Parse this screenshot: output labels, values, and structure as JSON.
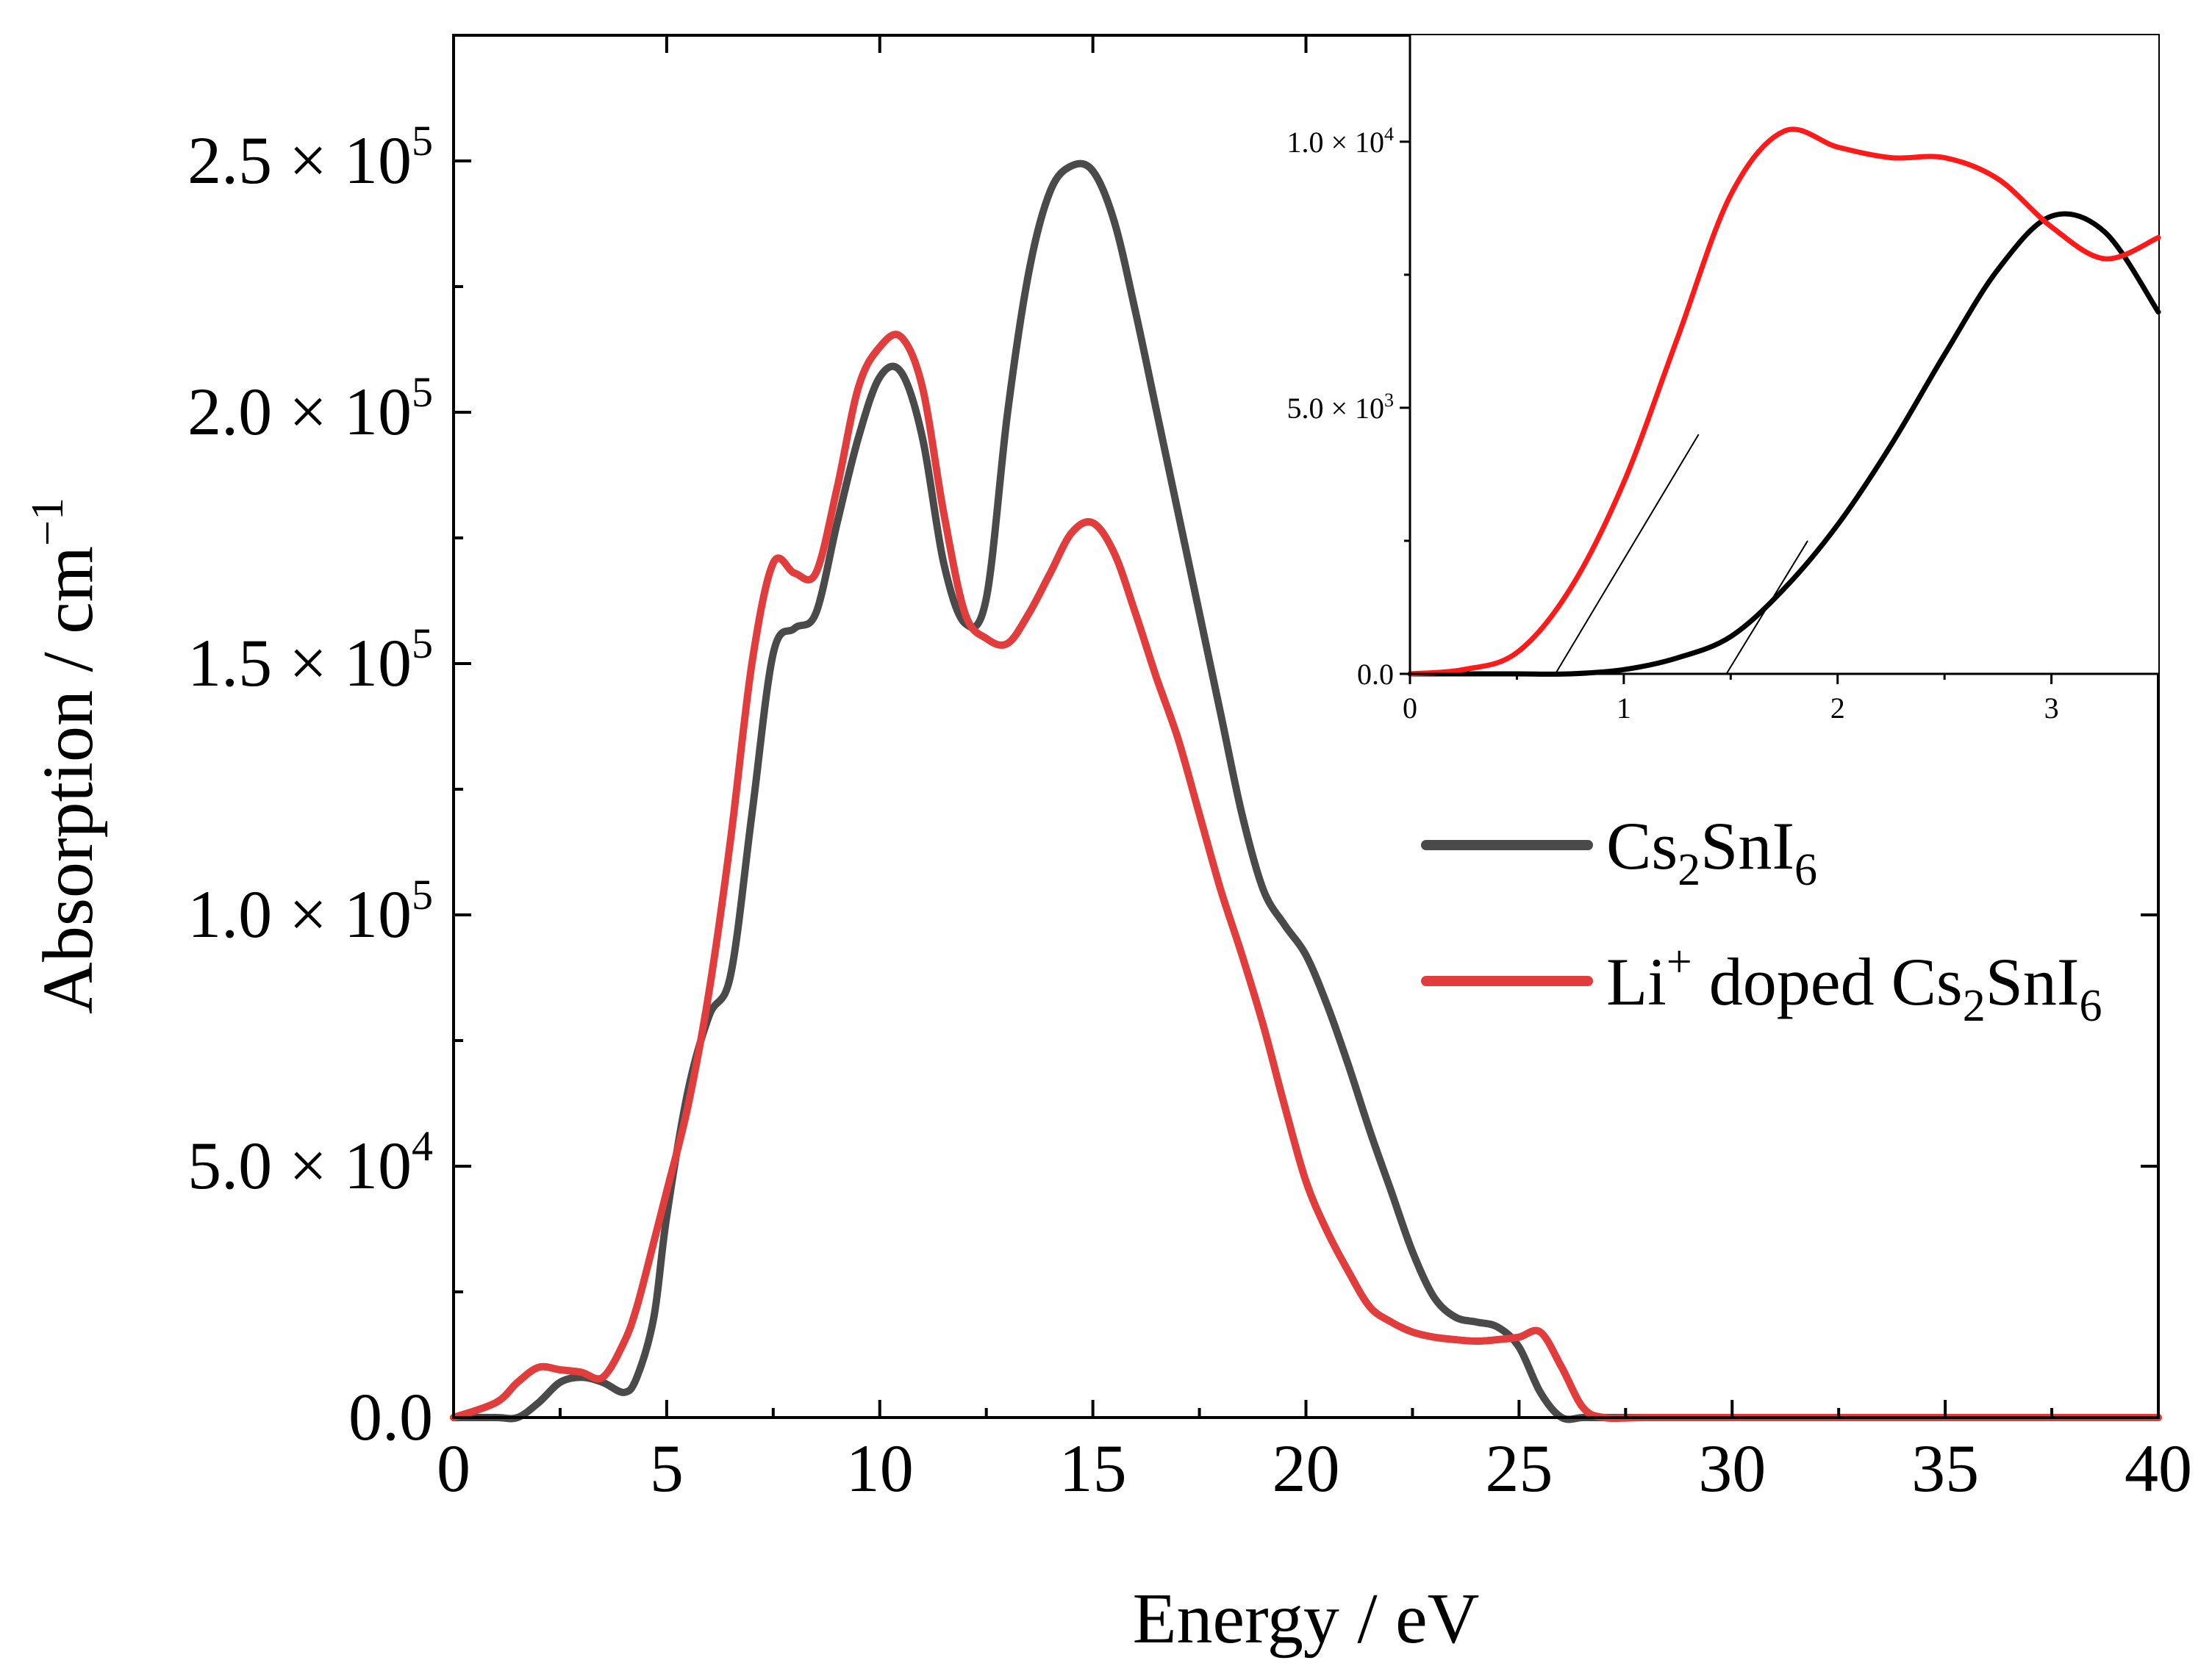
{
  "chart_data": [
    {
      "id": "main",
      "type": "line",
      "title": "",
      "xlabel": "Energy / eV",
      "ylabel_text": "Absorption / cm",
      "ylabel_sup": "−1",
      "xlim": [
        0,
        40
      ],
      "ylim": [
        0,
        275000
      ],
      "xticks": [
        {
          "value": 0,
          "label": "0"
        },
        {
          "value": 5,
          "label": "5"
        },
        {
          "value": 10,
          "label": "10"
        },
        {
          "value": 15,
          "label": "15"
        },
        {
          "value": 20,
          "label": "20"
        },
        {
          "value": 25,
          "label": "25"
        },
        {
          "value": 30,
          "label": "30"
        },
        {
          "value": 35,
          "label": "35"
        },
        {
          "value": 40,
          "label": "40"
        }
      ],
      "yticks": [
        {
          "value": 0,
          "label": "0.0",
          "mantissa": "",
          "exp": ""
        },
        {
          "value": 50000,
          "label": "",
          "mantissa": "5.0",
          "exp": "4"
        },
        {
          "value": 100000,
          "label": "",
          "mantissa": "1.0",
          "exp": "5"
        },
        {
          "value": 150000,
          "label": "",
          "mantissa": "1.5",
          "exp": "5"
        },
        {
          "value": 200000,
          "label": "",
          "mantissa": "2.0",
          "exp": "5"
        },
        {
          "value": 250000,
          "label": "",
          "mantissa": "2.5",
          "exp": "5"
        }
      ],
      "legend": {
        "placement": "right-middle",
        "entries": [
          {
            "series": "Cs2SnI6",
            "parts": [
              [
                "Cs",
                ""
              ],
              [
                "2",
                "sub"
              ],
              [
                "SnI",
                ""
              ],
              [
                "6",
                "sub"
              ]
            ]
          },
          {
            "series": "Li+ doped Cs2SnI6",
            "parts": [
              [
                "Li",
                ""
              ],
              [
                "+",
                "sup"
              ],
              [
                " doped Cs",
                ""
              ],
              [
                "2",
                "sub"
              ],
              [
                "SnI",
                ""
              ],
              [
                "6",
                "sub"
              ]
            ]
          }
        ]
      },
      "series": [
        {
          "name": "Cs2SnI6",
          "color": "#4a4a4a",
          "x": [
            0,
            1,
            1.5,
            2,
            2.5,
            3,
            3.5,
            4,
            4.3,
            4.7,
            5,
            5.5,
            6,
            6.5,
            7,
            7.5,
            8,
            8.5,
            9,
            9.5,
            10,
            10.5,
            11,
            11.5,
            12,
            12.5,
            13,
            13.5,
            14,
            14.5,
            15,
            15.5,
            16,
            16.5,
            17,
            17.5,
            18,
            18.5,
            19,
            19.5,
            20,
            20.5,
            21,
            21.5,
            22,
            22.5,
            23,
            23.5,
            24,
            24.5,
            25,
            25.5,
            26,
            26.5,
            27,
            28,
            30,
            35,
            40
          ],
          "y": [
            0,
            0,
            0,
            3000,
            7000,
            8000,
            7000,
            5000,
            8000,
            20000,
            40000,
            65000,
            80000,
            88000,
            120000,
            152000,
            157000,
            160000,
            178000,
            195000,
            207000,
            208000,
            195000,
            170000,
            158000,
            163000,
            200000,
            228000,
            244000,
            249000,
            248000,
            238000,
            220000,
            200000,
            180000,
            160000,
            140000,
            120000,
            105000,
            98000,
            92000,
            82000,
            70000,
            57000,
            45000,
            33000,
            24000,
            20000,
            19000,
            18000,
            14000,
            5000,
            0,
            0,
            0,
            0,
            0,
            0,
            0
          ]
        },
        {
          "name": "Li+ doped Cs2SnI6",
          "color": "#e23d3d",
          "x": [
            0,
            1,
            1.5,
            2,
            2.5,
            3,
            3.5,
            4,
            4.3,
            4.7,
            5,
            5.5,
            6,
            6.5,
            7,
            7.5,
            8,
            8.5,
            9,
            9.5,
            10,
            10.5,
            11,
            11.5,
            12,
            12.5,
            13,
            13.5,
            14,
            14.5,
            15,
            15.5,
            16,
            16.5,
            17,
            17.5,
            18,
            18.5,
            19,
            19.5,
            20,
            20.5,
            21,
            21.5,
            22,
            22.5,
            23,
            23.5,
            24,
            24.5,
            25,
            25.5,
            26,
            26.5,
            27,
            28,
            30,
            35,
            40
          ],
          "y": [
            0,
            3000,
            7000,
            10000,
            9500,
            9000,
            8000,
            15000,
            22000,
            35000,
            45000,
            62000,
            85000,
            115000,
            150000,
            170000,
            168000,
            168000,
            185000,
            205000,
            213000,
            215000,
            205000,
            180000,
            160000,
            155000,
            154000,
            160000,
            168000,
            176000,
            178000,
            172000,
            160000,
            147000,
            135000,
            120000,
            105000,
            92000,
            78000,
            62000,
            47000,
            37000,
            29000,
            22000,
            19000,
            17000,
            16000,
            15500,
            15200,
            15500,
            16000,
            17000,
            10000,
            2000,
            0,
            0,
            0,
            0,
            0
          ]
        }
      ]
    },
    {
      "id": "inset",
      "type": "line",
      "title": "",
      "xlabel": "",
      "ylabel": "",
      "xlim": [
        0,
        3.5
      ],
      "ylim": [
        0,
        12000
      ],
      "xticks": [
        {
          "value": 0,
          "label": "0"
        },
        {
          "value": 1,
          "label": "1"
        },
        {
          "value": 2,
          "label": "2"
        },
        {
          "value": 3,
          "label": "3"
        }
      ],
      "yticks": [
        {
          "value": 0,
          "label": "0.0",
          "mantissa": "",
          "exp": ""
        },
        {
          "value": 5000,
          "label": "",
          "mantissa": "5.0",
          "exp": "3"
        },
        {
          "value": 10000,
          "label": "",
          "mantissa": "1.0",
          "exp": "4"
        }
      ],
      "series": [
        {
          "name": "Cs2SnI6",
          "color": "#000000",
          "x": [
            0,
            0.25,
            0.5,
            0.75,
            1.0,
            1.25,
            1.5,
            1.75,
            2.0,
            2.25,
            2.5,
            2.75,
            3.0,
            3.25,
            3.5
          ],
          "y": [
            0,
            0,
            0,
            0,
            80,
            300,
            700,
            1600,
            2800,
            4300,
            6000,
            7600,
            8600,
            8300,
            6800
          ]
        },
        {
          "name": "Li+ doped Cs2SnI6",
          "color": "#ff1a1a",
          "x": [
            0,
            0.25,
            0.5,
            0.75,
            1.0,
            1.25,
            1.5,
            1.75,
            2.0,
            2.25,
            2.5,
            2.75,
            3.0,
            3.25,
            3.5
          ],
          "y": [
            0,
            80,
            400,
            1600,
            3600,
            6300,
            9000,
            10200,
            9900,
            9700,
            9700,
            9300,
            8400,
            7800,
            8200
          ]
        }
      ],
      "tangent_lines": [
        {
          "for": "Li+ doped Cs2SnI6",
          "x": [
            0.68,
            1.35
          ],
          "y": [
            0,
            4500
          ],
          "color": "#000000"
        },
        {
          "for": "Cs2SnI6",
          "x": [
            1.48,
            1.86
          ],
          "y": [
            0,
            2500
          ],
          "color": "#000000"
        }
      ]
    }
  ]
}
